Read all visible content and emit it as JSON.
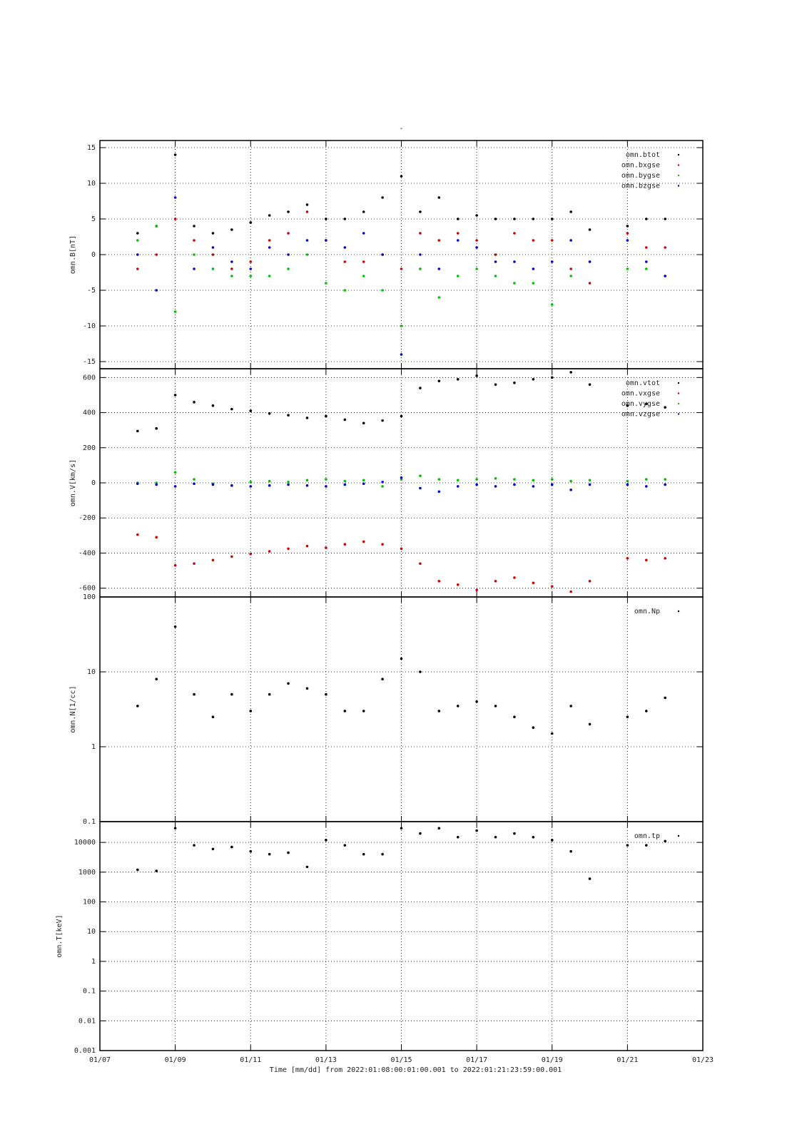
{
  "chart_data": [
    {
      "type": "scatter",
      "title": "-",
      "ylabel": "omn.B[nT]",
      "x": [
        8,
        8.5,
        9,
        9.5,
        10,
        10.5,
        11,
        11.5,
        12,
        12.5,
        13,
        13.5,
        14,
        14.5,
        15,
        15.5,
        16,
        16.5,
        17,
        17.5,
        18,
        18.5,
        19,
        19.5,
        20,
        20.5,
        21,
        21.5,
        22
      ],
      "xlim": [
        7,
        23
      ],
      "ylim": [
        -16,
        16
      ],
      "yticks": [
        -15,
        -10,
        -5,
        0,
        5,
        10,
        15
      ],
      "grid": true,
      "legend": "top-right",
      "series": [
        {
          "name": "omn.btot",
          "color": "#000000",
          "values": [
            3,
            4,
            14,
            4,
            3,
            3.5,
            4.5,
            5.5,
            6,
            7,
            5,
            5,
            6,
            8,
            11,
            6,
            8,
            5,
            5.5,
            5,
            5,
            5,
            5,
            6,
            3.5,
            null,
            4,
            5,
            5
          ]
        },
        {
          "name": "omn.bxgse",
          "color": "#d00000",
          "values": [
            -2,
            0,
            5,
            2,
            0,
            -2,
            -1,
            2,
            3,
            6,
            2,
            -1,
            -1,
            0,
            -2,
            3,
            2,
            3,
            2,
            0,
            3,
            2,
            2,
            -2,
            -4,
            null,
            3,
            1,
            1
          ]
        },
        {
          "name": "omn.bygse",
          "color": "#00c000",
          "values": [
            2,
            4,
            -8,
            0,
            -2,
            -3,
            -3,
            -3,
            -2,
            0,
            -4,
            -5,
            -3,
            -5,
            -10,
            -2,
            -6,
            -3,
            -2,
            -3,
            -4,
            -4,
            -7,
            -3,
            -1,
            null,
            -2,
            -2,
            -3
          ]
        },
        {
          "name": "omn.bzgse",
          "color": "#0000d0",
          "values": [
            0,
            -5,
            8,
            -2,
            1,
            -1,
            -2,
            1,
            0,
            2,
            2,
            1,
            3,
            0,
            -14,
            0,
            -2,
            2,
            1,
            -1,
            -1,
            -2,
            -1,
            2,
            -1,
            null,
            2,
            -1,
            -3
          ]
        }
      ]
    },
    {
      "type": "scatter",
      "ylabel": "omn.V[km/s]",
      "x": [
        8,
        8.5,
        9,
        9.5,
        10,
        10.5,
        11,
        11.5,
        12,
        12.5,
        13,
        13.5,
        14,
        14.5,
        15,
        15.5,
        16,
        16.5,
        17,
        17.5,
        18,
        18.5,
        19,
        19.5,
        20,
        20.5,
        21,
        21.5,
        22
      ],
      "xlim": [
        7,
        23
      ],
      "ylim": [
        -650,
        650
      ],
      "yticks": [
        -600,
        -400,
        -200,
        0,
        200,
        400,
        600
      ],
      "grid": true,
      "legend": "top-right",
      "series": [
        {
          "name": "omn.vtot",
          "color": "#000000",
          "values": [
            295,
            310,
            500,
            460,
            440,
            420,
            410,
            395,
            385,
            370,
            380,
            360,
            340,
            355,
            380,
            540,
            580,
            590,
            610,
            560,
            570,
            590,
            600,
            630,
            560,
            null,
            440,
            450,
            430
          ]
        },
        {
          "name": "omn.vxgse",
          "color": "#d00000",
          "values": [
            -295,
            -310,
            -470,
            -460,
            -440,
            -420,
            -405,
            -390,
            -375,
            -360,
            -370,
            -350,
            -335,
            -350,
            -375,
            -460,
            -560,
            -580,
            -610,
            -560,
            -540,
            -570,
            -590,
            -620,
            -560,
            null,
            -430,
            -440,
            -430
          ]
        },
        {
          "name": "omn.vygse",
          "color": "#00c000",
          "values": [
            0,
            0,
            60,
            20,
            -5,
            -15,
            5,
            10,
            5,
            15,
            20,
            10,
            15,
            -20,
            20,
            40,
            20,
            15,
            20,
            25,
            20,
            15,
            20,
            10,
            15,
            null,
            10,
            20,
            20
          ]
        },
        {
          "name": "omn.vzgse",
          "color": "#0000d0",
          "values": [
            -5,
            -10,
            -20,
            -5,
            -10,
            -15,
            -20,
            -15,
            -10,
            -15,
            -20,
            -10,
            -5,
            5,
            30,
            -30,
            -50,
            -20,
            -10,
            -20,
            -10,
            -20,
            -10,
            -40,
            -10,
            null,
            -10,
            -20,
            -10
          ]
        }
      ]
    },
    {
      "type": "scatter",
      "ylabel": "omn.N[1/cc]",
      "ylog": true,
      "x": [
        8,
        8.5,
        9,
        9.5,
        10,
        10.5,
        11,
        11.5,
        12,
        12.5,
        13,
        13.5,
        14,
        14.5,
        15,
        15.5,
        16,
        16.5,
        17,
        17.5,
        18,
        18.5,
        19,
        19.5,
        20,
        20.5,
        21,
        21.5,
        22
      ],
      "xlim": [
        7,
        23
      ],
      "ylim": [
        0.1,
        100
      ],
      "yticks": [
        0.1,
        1,
        10,
        100
      ],
      "grid": true,
      "legend": "top-right",
      "series": [
        {
          "name": "omn.Np",
          "color": "#000000",
          "values": [
            3.5,
            8,
            40,
            5,
            2.5,
            5,
            3,
            5,
            7,
            6,
            5,
            3,
            3,
            8,
            15,
            10,
            3,
            3.5,
            4,
            3.5,
            2.5,
            1.8,
            1.5,
            3.5,
            2,
            null,
            2.5,
            3,
            4.5
          ]
        }
      ]
    },
    {
      "type": "scatter",
      "ylabel": "omn.T[keV]",
      "ylog": true,
      "xlabel": "Time [mm/dd]  from 2022:01:08:00:01:00.001  to  2022:01:21:23:59:00.001",
      "x": [
        8,
        8.5,
        9,
        9.5,
        10,
        10.5,
        11,
        11.5,
        12,
        12.5,
        13,
        13.5,
        14,
        14.5,
        15,
        15.5,
        16,
        16.5,
        17,
        17.5,
        18,
        18.5,
        19,
        19.5,
        20,
        20.5,
        21,
        21.5,
        22
      ],
      "xlim": [
        7,
        23
      ],
      "xticks": [
        {
          "value": 7,
          "label": "01/07"
        },
        {
          "value": 9,
          "label": "01/09"
        },
        {
          "value": 11,
          "label": "01/11"
        },
        {
          "value": 13,
          "label": "01/13"
        },
        {
          "value": 15,
          "label": "01/15"
        },
        {
          "value": 17,
          "label": "01/17"
        },
        {
          "value": 19,
          "label": "01/19"
        },
        {
          "value": 21,
          "label": "01/21"
        },
        {
          "value": 23,
          "label": "01/23"
        }
      ],
      "ylim": [
        0.001,
        50000
      ],
      "yticks": [
        0.001,
        0.01,
        0.1,
        1,
        10,
        100,
        1000,
        10000
      ],
      "grid": true,
      "legend": "top-right",
      "series": [
        {
          "name": "omn.tp",
          "color": "#000000",
          "values": [
            1200,
            1100,
            30000,
            8000,
            6000,
            7000,
            5000,
            4000,
            4500,
            1500,
            12000,
            8000,
            4000,
            4000,
            30000,
            20000,
            30000,
            15000,
            25000,
            15000,
            20000,
            15000,
            12000,
            5000,
            600,
            null,
            8000,
            8000,
            11000
          ]
        }
      ]
    }
  ]
}
